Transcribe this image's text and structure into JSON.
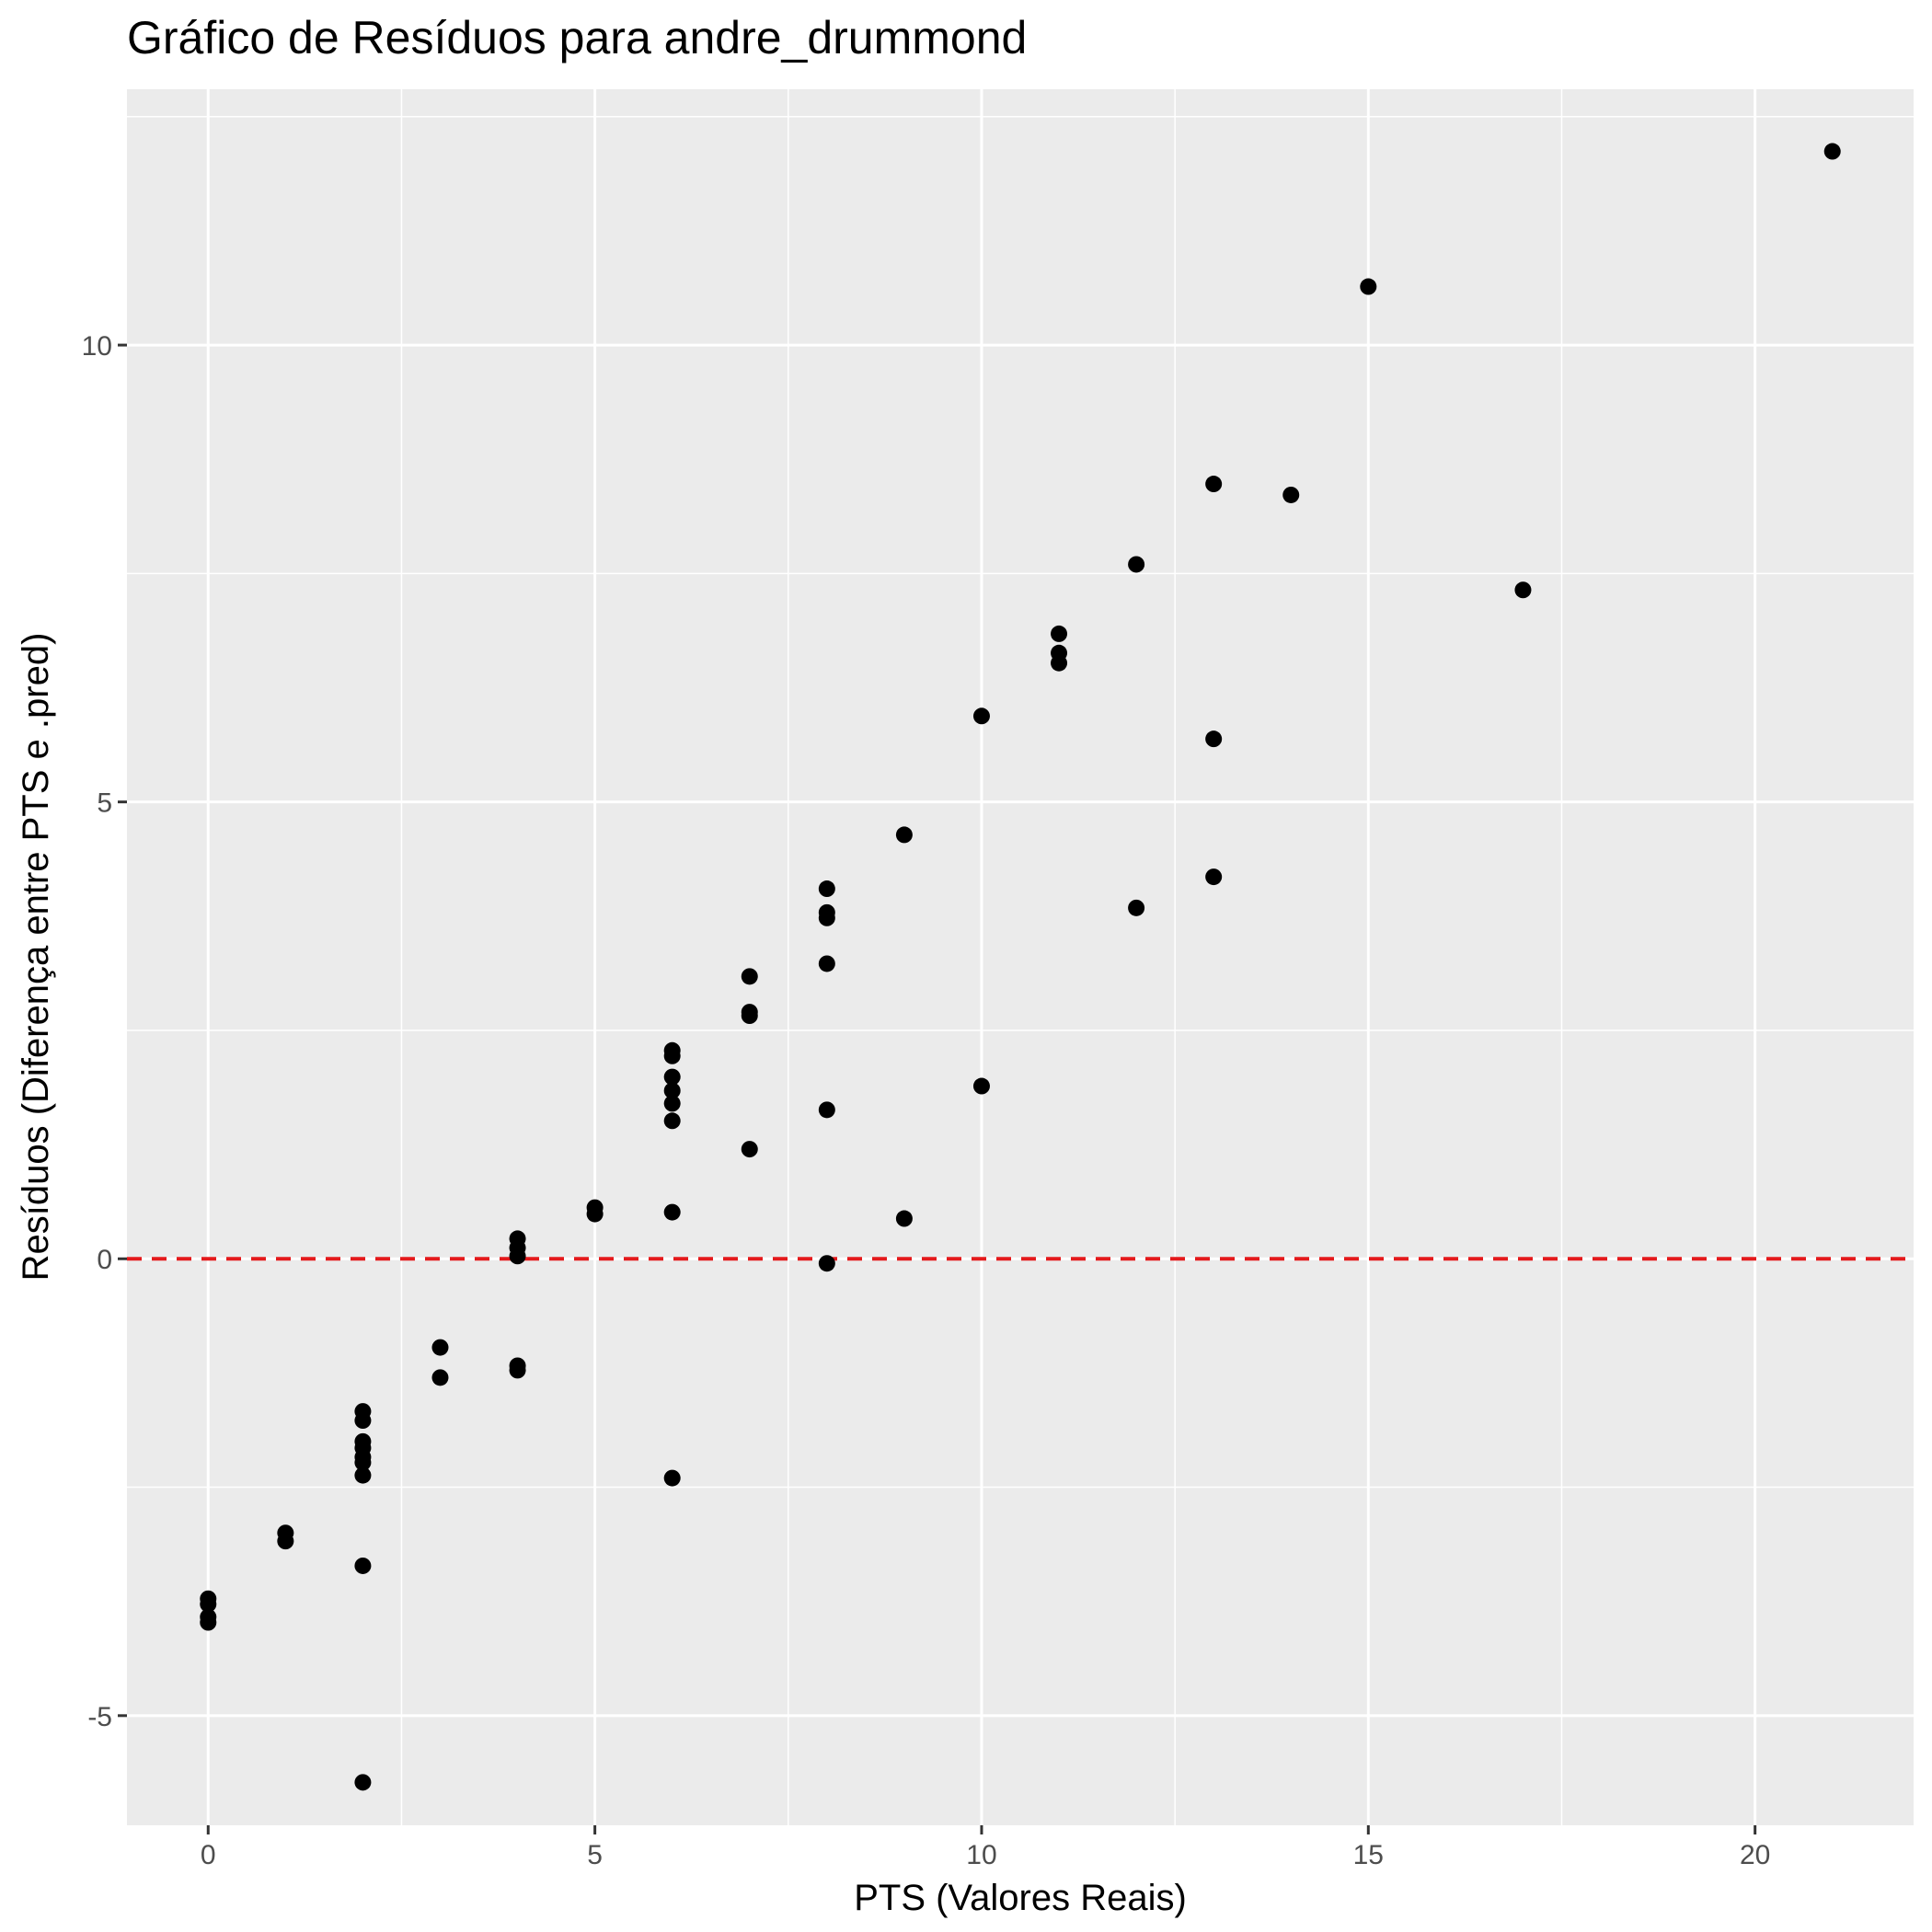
{
  "chart_data": {
    "type": "scatter",
    "title": "Gráfico de Resíduos para andre_drummond",
    "xlabel": "PTS (Valores Reais)",
    "ylabel": "Resíduos (Diferença entre PTS e .pred)",
    "xlim": [
      -1.05,
      22.05
    ],
    "ylim": [
      -6.2,
      12.8
    ],
    "x_ticks": [
      0,
      5,
      10,
      15,
      20
    ],
    "y_ticks": [
      -5,
      0,
      5,
      10
    ],
    "x_tick_labels": [
      "0",
      "5",
      "10",
      "15",
      "20"
    ],
    "y_tick_labels": [
      "-5",
      "0",
      "5",
      "10"
    ],
    "grid": true,
    "legend": "none",
    "reference_line": {
      "y": 0,
      "style": "dashed",
      "color": "#e41a1c"
    },
    "colors": {
      "panel": "#ebebeb",
      "grid": "#ffffff",
      "points": "#000000",
      "ticks": "#4d4d4d"
    },
    "points": [
      {
        "x": 0,
        "y": -3.72
      },
      {
        "x": 0,
        "y": -3.78
      },
      {
        "x": 0,
        "y": -3.92
      },
      {
        "x": 0,
        "y": -3.98
      },
      {
        "x": 1,
        "y": -3.0
      },
      {
        "x": 1,
        "y": -3.09
      },
      {
        "x": 2,
        "y": -1.67
      },
      {
        "x": 2,
        "y": -1.77
      },
      {
        "x": 2,
        "y": -2.0
      },
      {
        "x": 2,
        "y": -2.07
      },
      {
        "x": 2,
        "y": -2.17
      },
      {
        "x": 2,
        "y": -2.23
      },
      {
        "x": 2,
        "y": -2.37
      },
      {
        "x": 2,
        "y": -3.36
      },
      {
        "x": 2,
        "y": -5.73
      },
      {
        "x": 3,
        "y": -0.97
      },
      {
        "x": 3,
        "y": -1.3
      },
      {
        "x": 4,
        "y": 0.22
      },
      {
        "x": 4,
        "y": 0.12
      },
      {
        "x": 4,
        "y": 0.03
      },
      {
        "x": 4,
        "y": -1.17
      },
      {
        "x": 4,
        "y": -1.22
      },
      {
        "x": 5,
        "y": 0.56
      },
      {
        "x": 5,
        "y": 0.49
      },
      {
        "x": 6,
        "y": 2.28
      },
      {
        "x": 6,
        "y": 2.22
      },
      {
        "x": 6,
        "y": 1.99
      },
      {
        "x": 6,
        "y": 1.84
      },
      {
        "x": 6,
        "y": 1.7
      },
      {
        "x": 6,
        "y": 1.51
      },
      {
        "x": 6,
        "y": 0.51
      },
      {
        "x": 6,
        "y": -2.4
      },
      {
        "x": 7,
        "y": 3.09
      },
      {
        "x": 7,
        "y": 2.7
      },
      {
        "x": 7,
        "y": 2.66
      },
      {
        "x": 7,
        "y": 1.2
      },
      {
        "x": 8,
        "y": 4.05
      },
      {
        "x": 8,
        "y": 3.79
      },
      {
        "x": 8,
        "y": 3.73
      },
      {
        "x": 8,
        "y": 3.23
      },
      {
        "x": 8,
        "y": 1.63
      },
      {
        "x": 8,
        "y": -0.05
      },
      {
        "x": 9,
        "y": 4.64
      },
      {
        "x": 9,
        "y": 0.44
      },
      {
        "x": 10,
        "y": 5.94
      },
      {
        "x": 10,
        "y": 1.89
      },
      {
        "x": 11,
        "y": 6.84
      },
      {
        "x": 11,
        "y": 6.63
      },
      {
        "x": 11,
        "y": 6.52
      },
      {
        "x": 12,
        "y": 7.6
      },
      {
        "x": 12,
        "y": 3.84
      },
      {
        "x": 13,
        "y": 8.48
      },
      {
        "x": 13,
        "y": 5.69
      },
      {
        "x": 13,
        "y": 4.18
      },
      {
        "x": 14,
        "y": 8.36
      },
      {
        "x": 15,
        "y": 10.64
      },
      {
        "x": 17,
        "y": 7.32
      },
      {
        "x": 21,
        "y": 12.12
      }
    ]
  }
}
